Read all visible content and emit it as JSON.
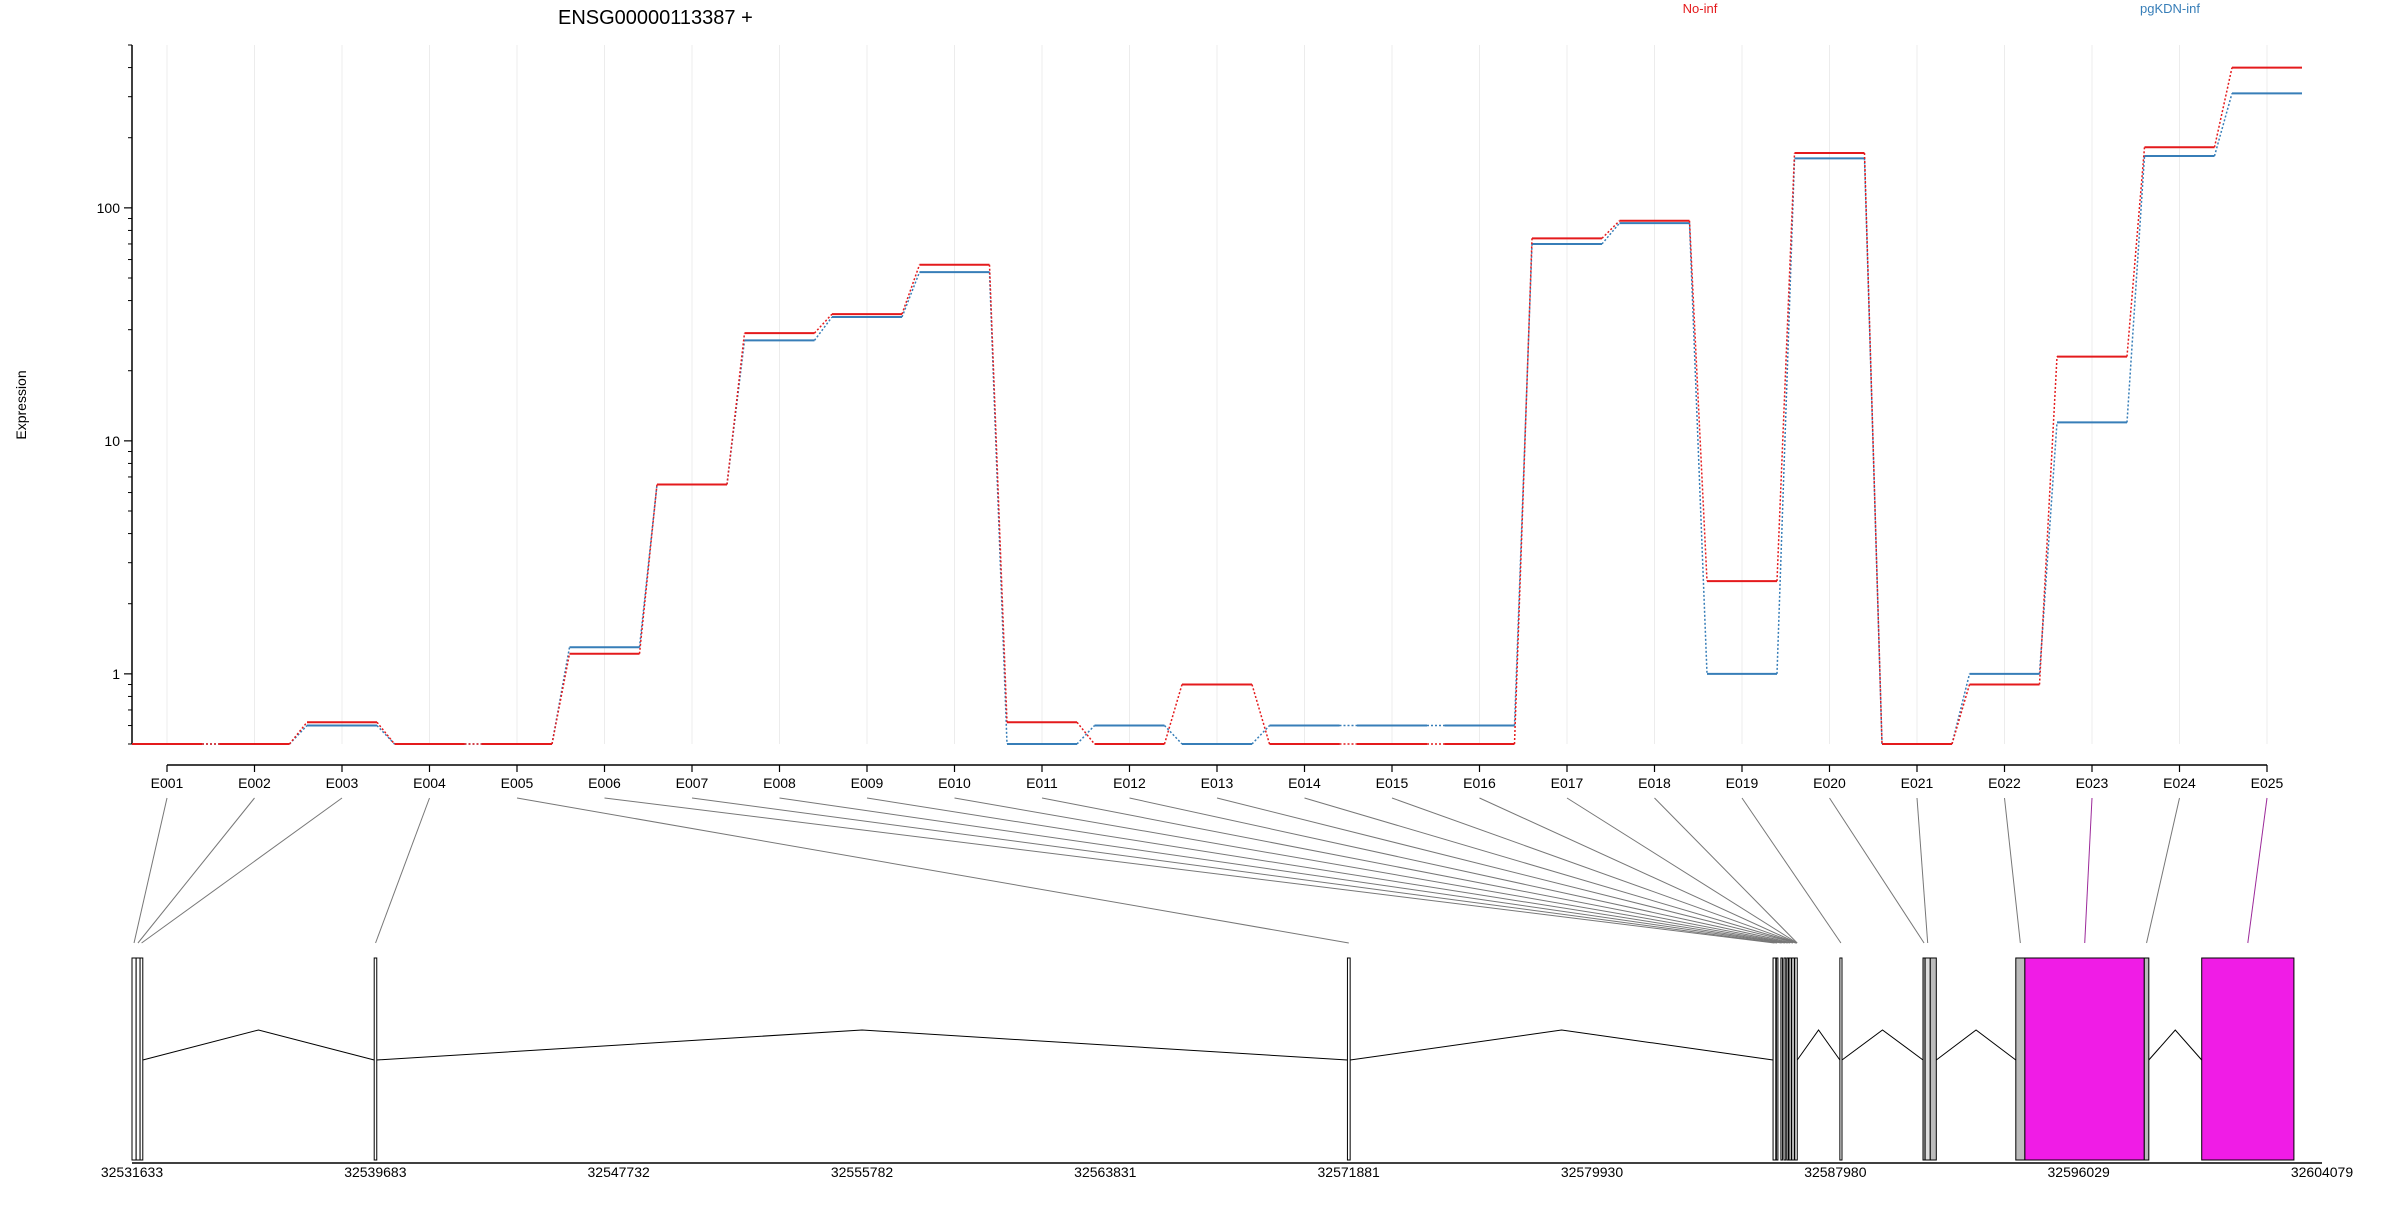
{
  "chart_data": {
    "type": "line",
    "title": "ENSG00000113387 +",
    "ylabel": "Expression",
    "xlabel": "",
    "y_scale": "log",
    "ylim": [
      0.5,
      500
    ],
    "y_ticks": [
      1,
      10,
      100
    ],
    "grid": true,
    "legend_placement": "top",
    "categories": [
      "E001",
      "E002",
      "E003",
      "E004",
      "E005",
      "E006",
      "E007",
      "E008",
      "E009",
      "E010",
      "E011",
      "E012",
      "E013",
      "E014",
      "E015",
      "E016",
      "E017",
      "E018",
      "E019",
      "E020",
      "E021",
      "E022",
      "E023",
      "E024",
      "E025"
    ],
    "series": [
      {
        "name": "No-inf",
        "color": "#E41A1C",
        "values": [
          0.5,
          0.5,
          0.62,
          0.5,
          0.5,
          1.22,
          6.5,
          29,
          35,
          57,
          0.62,
          0.5,
          0.9,
          0.5,
          0.5,
          0.5,
          74,
          88,
          2.5,
          172,
          0.5,
          0.9,
          23,
          182,
          400
        ]
      },
      {
        "name": "pgKDN-inf",
        "color": "#377EB8",
        "values": [
          0.5,
          0.5,
          0.6,
          0.5,
          0.5,
          1.3,
          6.5,
          27,
          34,
          53,
          0.5,
          0.6,
          0.5,
          0.6,
          0.6,
          0.6,
          70,
          86,
          1.0,
          163,
          0.5,
          1.0,
          12,
          167,
          310
        ]
      }
    ],
    "gene_model": {
      "genomic_ticks": [
        "32531633",
        "32539683",
        "32547732",
        "32555782",
        "32563831",
        "32571881",
        "32579930",
        "32587980",
        "32596029",
        "32604079"
      ],
      "highlight_color": "#F01CE6",
      "highlighted_exons": [
        "E023",
        "E025"
      ]
    }
  }
}
